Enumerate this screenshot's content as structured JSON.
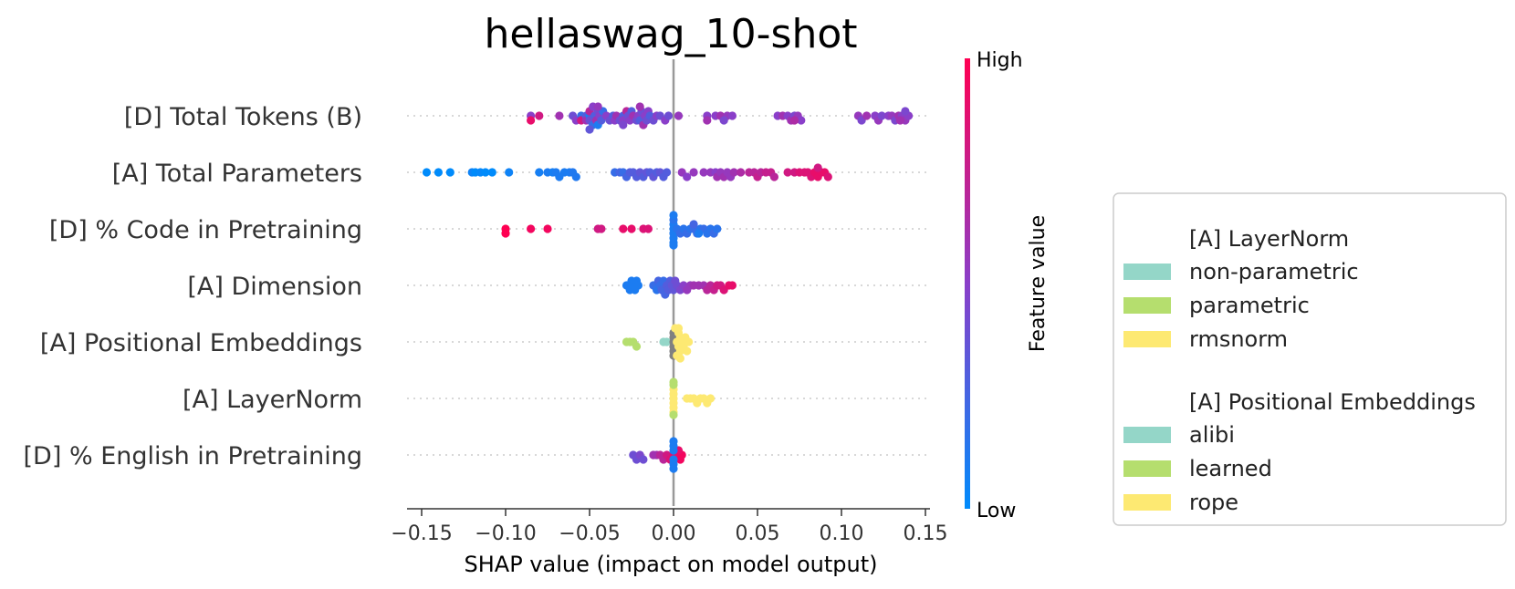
{
  "chart_data": {
    "type": "scatter",
    "subtype": "shap-beeswarm",
    "title": "hellaswag_10-shot",
    "xlabel": "SHAP value (impact on model output)",
    "xlim": [
      -0.16,
      0.155
    ],
    "xticks": [
      -0.15,
      -0.1,
      -0.05,
      0.0,
      0.05,
      0.1,
      0.15
    ],
    "xtick_labels": [
      "−0.15",
      "−0.10",
      "−0.05",
      "0.00",
      "0.05",
      "0.10",
      "0.15"
    ],
    "colorbar": {
      "label": "Feature value",
      "high": "High",
      "low": "Low",
      "low_color": "#008bfb",
      "high_color": "#ff0052",
      "mid_color": "#8a3fc9"
    },
    "features": [
      {
        "name": "[D] Total Tokens (B)",
        "points": [
          [
            -0.085,
            0.5
          ],
          [
            -0.085,
            0.9
          ],
          [
            -0.08,
            0.8
          ],
          [
            -0.068,
            0.6
          ],
          [
            -0.06,
            0.4
          ],
          [
            -0.058,
            0.5
          ],
          [
            -0.055,
            0.2
          ],
          [
            -0.055,
            0.8
          ],
          [
            -0.052,
            0.3
          ],
          [
            -0.052,
            0.6
          ],
          [
            -0.05,
            0.1
          ],
          [
            -0.05,
            0.4
          ],
          [
            -0.05,
            0.7
          ],
          [
            -0.048,
            0.2
          ],
          [
            -0.048,
            0.5
          ],
          [
            -0.047,
            0.3
          ],
          [
            -0.046,
            0.6
          ],
          [
            -0.045,
            0.4
          ],
          [
            -0.045,
            0.1
          ],
          [
            -0.044,
            0.5
          ],
          [
            -0.043,
            0.3
          ],
          [
            -0.042,
            0.2
          ],
          [
            -0.04,
            0.5
          ],
          [
            -0.038,
            0.4
          ],
          [
            -0.036,
            0.3
          ],
          [
            -0.035,
            0.5
          ],
          [
            -0.034,
            0.6
          ],
          [
            -0.032,
            0.4
          ],
          [
            -0.03,
            0.3
          ],
          [
            -0.03,
            0.5
          ],
          [
            -0.028,
            0.7
          ],
          [
            -0.027,
            0.4
          ],
          [
            -0.026,
            0.5
          ],
          [
            -0.025,
            0.3
          ],
          [
            -0.024,
            0.6
          ],
          [
            -0.022,
            0.4
          ],
          [
            -0.021,
            0.5
          ],
          [
            -0.02,
            0.3
          ],
          [
            -0.019,
            0.4
          ],
          [
            -0.018,
            0.6
          ],
          [
            -0.017,
            0.5
          ],
          [
            -0.016,
            0.4
          ],
          [
            -0.015,
            0.5
          ],
          [
            -0.014,
            0.3
          ],
          [
            -0.012,
            0.4
          ],
          [
            -0.01,
            0.5
          ],
          [
            -0.008,
            0.4
          ],
          [
            -0.005,
            0.5
          ],
          [
            -0.003,
            0.4
          ],
          [
            -0.02,
            0.6
          ],
          [
            -0.03,
            0.45
          ],
          [
            -0.045,
            0.55
          ],
          [
            -0.05,
            0.35
          ],
          [
            0.003,
            0.55
          ],
          [
            0.02,
            0.5
          ],
          [
            0.02,
            0.6
          ],
          [
            0.025,
            0.5
          ],
          [
            0.028,
            0.6
          ],
          [
            0.032,
            0.55
          ],
          [
            0.03,
            0.45
          ],
          [
            0.035,
            0.5
          ],
          [
            0.062,
            0.5
          ],
          [
            0.065,
            0.6
          ],
          [
            0.068,
            0.5
          ],
          [
            0.07,
            0.6
          ],
          [
            0.072,
            0.45
          ],
          [
            0.074,
            0.55
          ],
          [
            0.076,
            0.5
          ],
          [
            0.072,
            0.65
          ],
          [
            0.11,
            0.55
          ],
          [
            0.112,
            0.45
          ],
          [
            0.115,
            0.6
          ],
          [
            0.12,
            0.5
          ],
          [
            0.122,
            0.55
          ],
          [
            0.124,
            0.45
          ],
          [
            0.128,
            0.5
          ],
          [
            0.13,
            0.55
          ],
          [
            0.132,
            0.45
          ],
          [
            0.134,
            0.6
          ],
          [
            0.136,
            0.5
          ],
          [
            0.138,
            0.55
          ],
          [
            0.14,
            0.5
          ],
          [
            0.138,
            0.45
          ],
          [
            0.135,
            0.6
          ]
        ]
      },
      {
        "name": "[A] Total Parameters",
        "points": [
          [
            -0.147,
            0.0
          ],
          [
            -0.14,
            0.0
          ],
          [
            -0.133,
            0.0
          ],
          [
            -0.12,
            0.05
          ],
          [
            -0.118,
            0.0
          ],
          [
            -0.115,
            0.02
          ],
          [
            -0.112,
            0.0
          ],
          [
            -0.108,
            0.0
          ],
          [
            -0.098,
            0.05
          ],
          [
            -0.08,
            0.08
          ],
          [
            -0.075,
            0.1
          ],
          [
            -0.072,
            0.08
          ],
          [
            -0.07,
            0.1
          ],
          [
            -0.068,
            0.1
          ],
          [
            -0.065,
            0.1
          ],
          [
            -0.062,
            0.1
          ],
          [
            -0.06,
            0.12
          ],
          [
            -0.058,
            0.12
          ],
          [
            -0.035,
            0.2
          ],
          [
            -0.032,
            0.25
          ],
          [
            -0.03,
            0.2
          ],
          [
            -0.028,
            0.25
          ],
          [
            -0.026,
            0.3
          ],
          [
            -0.024,
            0.3
          ],
          [
            -0.022,
            0.3
          ],
          [
            -0.02,
            0.35
          ],
          [
            -0.018,
            0.3
          ],
          [
            -0.016,
            0.35
          ],
          [
            -0.014,
            0.3
          ],
          [
            -0.012,
            0.35
          ],
          [
            -0.01,
            0.3
          ],
          [
            -0.008,
            0.35
          ],
          [
            -0.006,
            0.3
          ],
          [
            -0.004,
            0.3
          ],
          [
            0.005,
            0.55
          ],
          [
            0.008,
            0.5
          ],
          [
            0.012,
            0.55
          ],
          [
            0.018,
            0.55
          ],
          [
            0.022,
            0.55
          ],
          [
            0.025,
            0.5
          ],
          [
            0.026,
            0.6
          ],
          [
            0.028,
            0.55
          ],
          [
            0.03,
            0.6
          ],
          [
            0.032,
            0.55
          ],
          [
            0.034,
            0.55
          ],
          [
            0.036,
            0.6
          ],
          [
            0.04,
            0.65
          ],
          [
            0.045,
            0.7
          ],
          [
            0.048,
            0.7
          ],
          [
            0.05,
            0.75
          ],
          [
            0.052,
            0.7
          ],
          [
            0.055,
            0.75
          ],
          [
            0.058,
            0.75
          ],
          [
            0.06,
            0.7
          ],
          [
            0.068,
            0.8
          ],
          [
            0.072,
            0.8
          ],
          [
            0.075,
            0.85
          ],
          [
            0.078,
            0.85
          ],
          [
            0.08,
            0.85
          ],
          [
            0.082,
            0.85
          ],
          [
            0.084,
            0.9
          ],
          [
            0.086,
            0.9
          ],
          [
            0.088,
            0.9
          ],
          [
            0.09,
            0.9
          ],
          [
            0.092,
            0.85
          ],
          [
            0.086,
            0.8
          ]
        ]
      },
      {
        "name": "[D] % Code in Pretraining",
        "points": [
          [
            -0.1,
            1.0
          ],
          [
            -0.1,
            1.0
          ],
          [
            -0.085,
            0.95
          ],
          [
            -0.075,
            0.95
          ],
          [
            -0.045,
            0.8
          ],
          [
            -0.043,
            0.8
          ],
          [
            -0.03,
            0.9
          ],
          [
            -0.025,
            0.9
          ],
          [
            -0.018,
            0.85
          ],
          [
            -0.015,
            0.85
          ],
          [
            0.0,
            0.1
          ],
          [
            0.0,
            0.1
          ],
          [
            0.0,
            0.1
          ],
          [
            0.0,
            0.1
          ],
          [
            0.0,
            0.15
          ],
          [
            0.0,
            0.1
          ],
          [
            0.0,
            0.1
          ],
          [
            0.0,
            0.1
          ],
          [
            0.002,
            0.15
          ],
          [
            0.004,
            0.2
          ],
          [
            0.006,
            0.15
          ],
          [
            0.008,
            0.2
          ],
          [
            0.01,
            0.15
          ],
          [
            0.012,
            0.2
          ],
          [
            0.014,
            0.2
          ],
          [
            0.016,
            0.15
          ],
          [
            0.018,
            0.2
          ],
          [
            0.02,
            0.15
          ],
          [
            0.022,
            0.15
          ],
          [
            0.024,
            0.2
          ],
          [
            0.026,
            0.15
          ],
          [
            0.015,
            0.1
          ],
          [
            0.012,
            0.25
          ]
        ]
      },
      {
        "name": "[A] Dimension",
        "points": [
          [
            -0.028,
            0.1
          ],
          [
            -0.027,
            0.1
          ],
          [
            -0.026,
            0.1
          ],
          [
            -0.025,
            0.1
          ],
          [
            -0.024,
            0.1
          ],
          [
            -0.023,
            0.1
          ],
          [
            -0.022,
            0.1
          ],
          [
            -0.021,
            0.1
          ],
          [
            -0.012,
            0.2
          ],
          [
            -0.011,
            0.2
          ],
          [
            -0.01,
            0.15
          ],
          [
            -0.009,
            0.25
          ],
          [
            -0.008,
            0.2
          ],
          [
            -0.007,
            0.25
          ],
          [
            -0.006,
            0.2
          ],
          [
            -0.005,
            0.25
          ],
          [
            -0.004,
            0.3
          ],
          [
            -0.003,
            0.3
          ],
          [
            -0.002,
            0.3
          ],
          [
            -0.001,
            0.35
          ],
          [
            0.0,
            0.35
          ],
          [
            0.001,
            0.4
          ],
          [
            0.002,
            0.4
          ],
          [
            0.004,
            0.45
          ],
          [
            0.006,
            0.5
          ],
          [
            0.008,
            0.55
          ],
          [
            0.01,
            0.55
          ],
          [
            0.012,
            0.6
          ],
          [
            0.015,
            0.6
          ],
          [
            0.018,
            0.6
          ],
          [
            0.02,
            0.7
          ],
          [
            0.022,
            0.7
          ],
          [
            0.024,
            0.75
          ],
          [
            0.026,
            0.8
          ],
          [
            0.028,
            0.8
          ],
          [
            0.03,
            0.85
          ],
          [
            0.033,
            0.9
          ],
          [
            0.035,
            0.9
          ]
        ]
      },
      {
        "name": "[A] Positional Embeddings",
        "points": [
          [
            -0.028,
            "learned"
          ],
          [
            -0.026,
            "learned"
          ],
          [
            -0.024,
            "learned"
          ],
          [
            -0.022,
            "learned"
          ],
          [
            -0.006,
            "alibi"
          ],
          [
            -0.004,
            "alibi"
          ],
          [
            0.0,
            null
          ],
          [
            0.0,
            null
          ],
          [
            0.0,
            null
          ],
          [
            0.0,
            null
          ],
          [
            0.0,
            null
          ],
          [
            0.0,
            null
          ],
          [
            0.001,
            "rope"
          ],
          [
            0.002,
            "rope"
          ],
          [
            0.003,
            "rope"
          ],
          [
            0.004,
            "rope"
          ],
          [
            0.005,
            "rope"
          ],
          [
            0.006,
            "rope"
          ],
          [
            0.007,
            "rope"
          ],
          [
            0.008,
            "rope"
          ],
          [
            0.009,
            "rope"
          ],
          [
            0.004,
            "rope"
          ],
          [
            0.003,
            "rope"
          ],
          [
            0.002,
            "rope"
          ],
          [
            0.003,
            "rope"
          ],
          [
            0.004,
            "rope"
          ]
        ]
      },
      {
        "name": "[A] LayerNorm",
        "points": [
          [
            0.0,
            "rmsnorm"
          ],
          [
            0.0,
            "rmsnorm"
          ],
          [
            0.0,
            "rmsnorm"
          ],
          [
            0.0,
            "rmsnorm"
          ],
          [
            0.0,
            "rmsnorm"
          ],
          [
            0.0,
            "rmsnorm"
          ],
          [
            0.0,
            "parametric"
          ],
          [
            0.0,
            "parametric"
          ],
          [
            0.0,
            "parametric"
          ],
          [
            0.008,
            "rmsnorm"
          ],
          [
            0.01,
            "rmsnorm"
          ],
          [
            0.012,
            "rmsnorm"
          ],
          [
            0.014,
            "rmsnorm"
          ],
          [
            0.016,
            "rmsnorm"
          ],
          [
            0.018,
            "rmsnorm"
          ],
          [
            0.02,
            "rmsnorm"
          ],
          [
            0.022,
            "rmsnorm"
          ]
        ]
      },
      {
        "name": "[D] % English in Pretraining",
        "points": [
          [
            -0.024,
            0.4
          ],
          [
            -0.022,
            0.4
          ],
          [
            -0.02,
            0.45
          ],
          [
            -0.018,
            0.4
          ],
          [
            -0.012,
            0.6
          ],
          [
            -0.01,
            0.6
          ],
          [
            -0.008,
            0.7
          ],
          [
            -0.006,
            0.7
          ],
          [
            -0.004,
            0.8
          ],
          [
            -0.002,
            0.85
          ],
          [
            0.0,
            0.9
          ],
          [
            0.002,
            0.9
          ],
          [
            0.004,
            0.95
          ],
          [
            0.005,
            0.95
          ],
          [
            0.003,
            0.9
          ],
          [
            0.0,
            0.1
          ],
          [
            0.0,
            0.1
          ],
          [
            0.0,
            0.1
          ],
          [
            0.0,
            0.1
          ],
          [
            0.0,
            0.1
          ],
          [
            0.0,
            0.1
          ]
        ]
      }
    ],
    "legend": [
      {
        "title": "[A] LayerNorm",
        "items": [
          {
            "label": "non-parametric",
            "color": "#94d6c8"
          },
          {
            "label": "parametric",
            "color": "#b5de6e"
          },
          {
            "label": "rmsnorm",
            "color": "#fde972"
          }
        ]
      },
      {
        "title": "[A] Positional Embeddings",
        "items": [
          {
            "label": "alibi",
            "color": "#94d6c8"
          },
          {
            "label": "learned",
            "color": "#b5de6e"
          },
          {
            "label": "rope",
            "color": "#fde972"
          }
        ]
      }
    ],
    "category_colors": {
      "alibi": "#94d6c8",
      "learned": "#b5de6e",
      "rope": "#fde972",
      "non-parametric": "#94d6c8",
      "parametric": "#b5de6e",
      "rmsnorm": "#fde972",
      "missing": "#808080"
    }
  }
}
